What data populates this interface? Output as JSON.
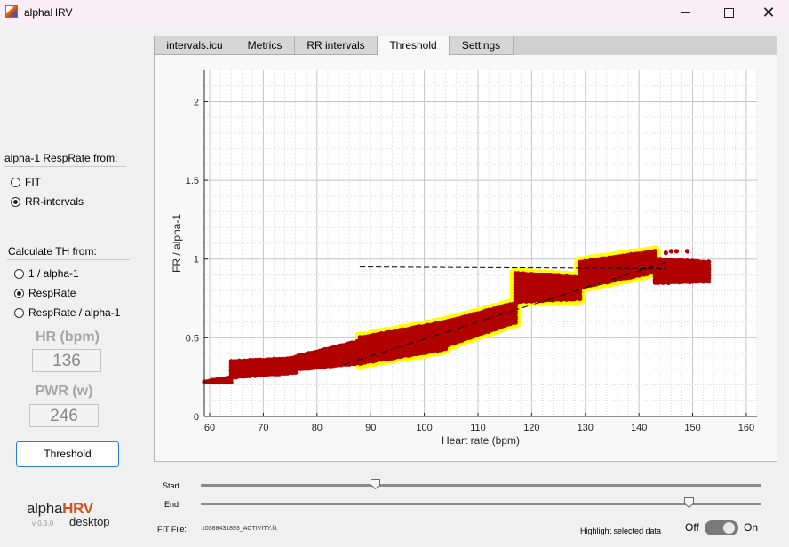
{
  "window": {
    "title": "alphaHRV",
    "minimize_label": "",
    "maximize_label": "",
    "close_label": "✕"
  },
  "left": {
    "resp_group": {
      "title": "alpha-1 RespRate from:",
      "options": [
        {
          "label": "FIT",
          "selected": false
        },
        {
          "label": "RR-intervals",
          "selected": true
        }
      ]
    },
    "th_group": {
      "title": "Calculate TH from:",
      "options": [
        {
          "label": "1 / alpha-1",
          "selected": false
        },
        {
          "label": "RespRate",
          "selected": true
        },
        {
          "label": "RespRate / alpha-1",
          "selected": false
        }
      ]
    },
    "hr": {
      "label": "HR (bpm)",
      "value": "136"
    },
    "pwr": {
      "label": "PWR (w)",
      "value": "246"
    },
    "threshold_button": "Threshold",
    "logo": {
      "part1": "alpha",
      "part2": "HRV",
      "version": "v 0.3.0",
      "sub": "desktop"
    }
  },
  "tabs": [
    {
      "label": "intervals.icu",
      "active": false
    },
    {
      "label": "Metrics",
      "active": false
    },
    {
      "label": "RR intervals",
      "active": false
    },
    {
      "label": "Threshold",
      "active": true
    },
    {
      "label": "Settings",
      "active": false
    }
  ],
  "chart_data": {
    "type": "scatter",
    "title": "",
    "xlabel": "Heart rate (bpm)",
    "ylabel": "FR / alpha-1",
    "xlim": [
      59,
      162
    ],
    "ylim": [
      0,
      2.2
    ],
    "xticks": [
      60,
      70,
      80,
      90,
      100,
      110,
      120,
      130,
      140,
      150,
      160
    ],
    "yticks": [
      0,
      0.5,
      1,
      1.5,
      2
    ],
    "ytick_labels": [
      "0",
      "0.5",
      "1",
      "1.5",
      "2"
    ],
    "grid": "minor",
    "segments": [
      {
        "hr_start": 59,
        "hr_end": 64,
        "ylo_start": 0.22,
        "yhi_start": 0.22,
        "ylo_end": 0.22,
        "yhi_end": 0.25,
        "highlight": false
      },
      {
        "hr_start": 64,
        "hr_end": 76,
        "ylo_start": 0.25,
        "yhi_start": 0.35,
        "ylo_end": 0.28,
        "yhi_end": 0.37,
        "highlight": false
      },
      {
        "hr_start": 76,
        "hr_end": 88,
        "ylo_start": 0.3,
        "yhi_start": 0.38,
        "ylo_end": 0.34,
        "yhi_end": 0.48,
        "highlight": false
      },
      {
        "hr_start": 88,
        "hr_end": 104,
        "ylo_start": 0.34,
        "yhi_start": 0.5,
        "ylo_end": 0.43,
        "yhi_end": 0.6,
        "highlight": true
      },
      {
        "hr_start": 104,
        "hr_end": 117,
        "ylo_start": 0.45,
        "yhi_start": 0.6,
        "ylo_end": 0.6,
        "yhi_end": 0.72,
        "highlight": true
      },
      {
        "hr_start": 117,
        "hr_end": 129,
        "ylo_start": 0.73,
        "yhi_start": 0.91,
        "ylo_end": 0.75,
        "yhi_end": 0.88,
        "highlight": true
      },
      {
        "hr_start": 129,
        "hr_end": 143,
        "ylo_start": 0.82,
        "yhi_start": 0.98,
        "ylo_end": 0.92,
        "yhi_end": 1.05,
        "highlight": true
      },
      {
        "hr_start": 143,
        "hr_end": 153,
        "ylo_start": 0.85,
        "yhi_start": 1.0,
        "ylo_end": 0.86,
        "yhi_end": 0.98,
        "highlight": false
      }
    ],
    "extra_points": [
      [
        143,
        0.97
      ],
      [
        145,
        1.04
      ],
      [
        146,
        1.05
      ],
      [
        147,
        1.05
      ],
      [
        149,
        1.05
      ],
      [
        150,
        0.95
      ],
      [
        152,
        0.98
      ]
    ],
    "threshold_line": {
      "x": [
        88,
        145
      ],
      "y": [
        0.95,
        0.94
      ],
      "style": "dashed"
    },
    "fit_line": {
      "x": [
        85,
        145
      ],
      "y": [
        0.33,
        0.98
      ],
      "style": "dash-dot"
    },
    "colors": {
      "points": "#b00000",
      "highlight": "#ffff00",
      "lines": "#000000",
      "grid": "#bdbdbd"
    }
  },
  "sliders": {
    "start": {
      "label": "Start",
      "fraction": 0.31
    },
    "end": {
      "label": "End",
      "fraction": 0.87
    }
  },
  "footer": {
    "file_label": "FIT File:",
    "file_name": "10388431893_ACTIVITY.fit",
    "highlight_label": "Highlight selected data",
    "off_label": "Off",
    "on_label": "On",
    "highlight_on": true
  }
}
